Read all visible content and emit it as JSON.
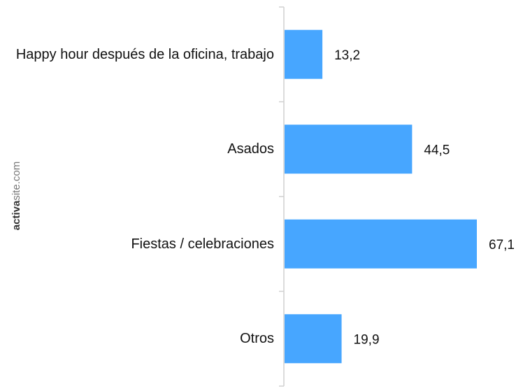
{
  "chart_data": {
    "type": "bar",
    "orientation": "horizontal",
    "categories": [
      "Happy hour después de la oficina, trabajo",
      "Asados",
      "Fiestas / celebraciones",
      "Otros"
    ],
    "values": [
      13.2,
      44.5,
      67.1,
      19.9
    ],
    "value_labels": [
      "13,2",
      "44,5",
      "67,1",
      "19,9"
    ],
    "color": "#47a6ff",
    "watermark": [
      "activa",
      "site.com"
    ]
  }
}
